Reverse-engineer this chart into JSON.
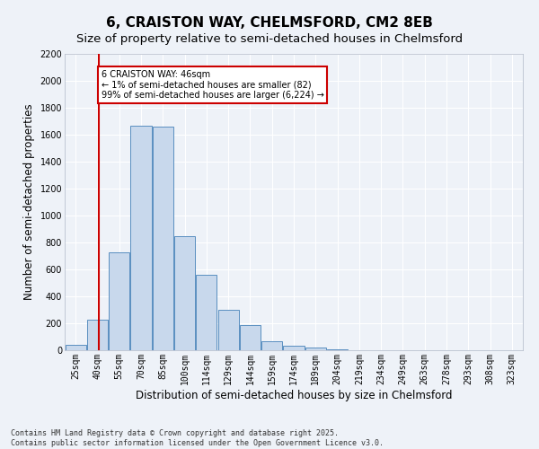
{
  "title": "6, CRAISTON WAY, CHELMSFORD, CM2 8EB",
  "subtitle": "Size of property relative to semi-detached houses in Chelmsford",
  "xlabel": "Distribution of semi-detached houses by size in Chelmsford",
  "ylabel": "Number of semi-detached properties",
  "categories": [
    "25sqm",
    "40sqm",
    "55sqm",
    "70sqm",
    "85sqm",
    "100sqm",
    "114sqm",
    "129sqm",
    "144sqm",
    "159sqm",
    "174sqm",
    "189sqm",
    "204sqm",
    "219sqm",
    "234sqm",
    "249sqm",
    "263sqm",
    "278sqm",
    "293sqm",
    "308sqm",
    "323sqm"
  ],
  "values": [
    40,
    225,
    730,
    1670,
    1660,
    845,
    560,
    300,
    185,
    65,
    35,
    20,
    5,
    0,
    0,
    0,
    0,
    0,
    0,
    0,
    0
  ],
  "bar_color": "#c8d8ec",
  "bar_edge_color": "#5a8fc0",
  "background_color": "#eef2f8",
  "grid_color": "#ffffff",
  "vline_x": 1.07,
  "vline_color": "#cc0000",
  "annotation_text": "6 CRAISTON WAY: 46sqm\n← 1% of semi-detached houses are smaller (82)\n99% of semi-detached houses are larger (6,224) →",
  "annotation_color": "#cc0000",
  "ylim": [
    0,
    2200
  ],
  "yticks": [
    0,
    200,
    400,
    600,
    800,
    1000,
    1200,
    1400,
    1600,
    1800,
    2000,
    2200
  ],
  "footer_text": "Contains HM Land Registry data © Crown copyright and database right 2025.\nContains public sector information licensed under the Open Government Licence v3.0.",
  "title_fontsize": 11,
  "subtitle_fontsize": 9.5,
  "tick_fontsize": 7,
  "ylabel_fontsize": 8.5,
  "xlabel_fontsize": 8.5,
  "footer_fontsize": 6
}
